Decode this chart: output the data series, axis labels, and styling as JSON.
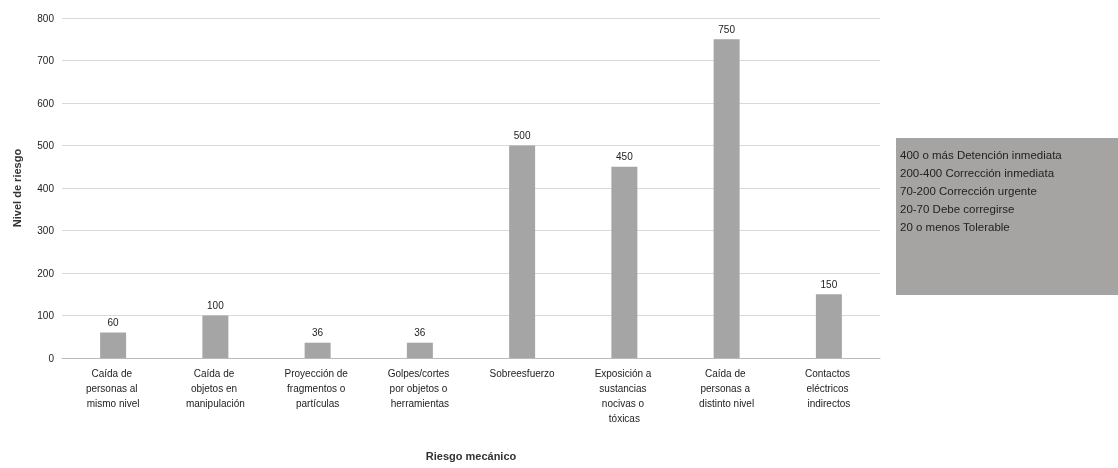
{
  "chart_data": {
    "type": "bar",
    "xlabel": "Riesgo mecánico",
    "ylabel": "Nivel de riesgo",
    "categories": [
      "Caída de personas al mismo nivel",
      "Caída de objetos en manipulación",
      "Proyección de fragmentos o partículas",
      "Golpes/cortes por objetos o herramientas",
      "Sobreesfuerzo",
      "Exposición a sustancias nocivas o tóxicas",
      "Caída de personas a distinto nivel",
      "Contactos eléctricos indirectos"
    ],
    "values": [
      60,
      100,
      36,
      36,
      500,
      450,
      750,
      150
    ],
    "color": "#a5a5a5",
    "ylim": [
      0,
      800
    ],
    "yticks": [
      0,
      100,
      200,
      300,
      400,
      500,
      600,
      700,
      800
    ],
    "grid": "y",
    "data_labels": true,
    "annotations": [
      "400 o más Detención inmediata",
      "200-400 Corrección inmediata",
      "70-200 Corrección urgente",
      "20-70 Debe corregirse",
      "20 o menos Tolerable"
    ]
  }
}
